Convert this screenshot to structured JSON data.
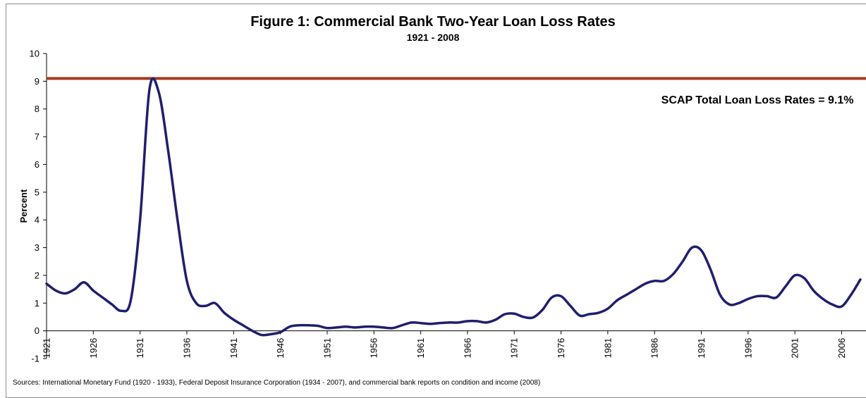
{
  "chart_data": {
    "type": "line",
    "title": "Figure 1: Commercial Bank Two-Year Loan Loss Rates",
    "subtitle": "1921 - 2008",
    "ylabel": "Percent",
    "xlabel": "",
    "ylim": [
      -1,
      10
    ],
    "xlim": [
      1921,
      2008
    ],
    "yticks": [
      "-1",
      "0",
      "1",
      "2",
      "3",
      "4",
      "5",
      "6",
      "7",
      "8",
      "9",
      "10"
    ],
    "xticks": [
      "1921",
      "1926",
      "1931",
      "1936",
      "1941",
      "1946",
      "1951",
      "1956",
      "1961",
      "1966",
      "1971",
      "1976",
      "1981",
      "1986",
      "1991",
      "1996",
      "2001",
      "2006"
    ],
    "grid": false,
    "series": [
      {
        "color": "#1f1f6e",
        "x": [
          1921,
          1922,
          1923,
          1924,
          1925,
          1926,
          1927,
          1928,
          1929,
          1930,
          1931,
          1932,
          1933,
          1934,
          1935,
          1936,
          1937,
          1938,
          1939,
          1940,
          1941,
          1942,
          1943,
          1944,
          1945,
          1946,
          1947,
          1948,
          1949,
          1950,
          1951,
          1952,
          1953,
          1954,
          1955,
          1956,
          1957,
          1958,
          1959,
          1960,
          1961,
          1962,
          1963,
          1964,
          1965,
          1966,
          1967,
          1968,
          1969,
          1970,
          1971,
          1972,
          1973,
          1974,
          1975,
          1976,
          1977,
          1978,
          1979,
          1980,
          1981,
          1982,
          1983,
          1984,
          1985,
          1986,
          1987,
          1988,
          1989,
          1990,
          1991,
          1992,
          1993,
          1994,
          1995,
          1996,
          1997,
          1998,
          1999,
          2000,
          2001,
          2002,
          2003,
          2004,
          2005,
          2006,
          2007,
          2008
        ],
        "values": [
          1.7,
          1.45,
          1.35,
          1.5,
          1.75,
          1.45,
          1.2,
          0.95,
          0.72,
          1.1,
          4.0,
          8.7,
          8.6,
          6.5,
          4.0,
          1.8,
          1.0,
          0.9,
          1.0,
          0.65,
          0.4,
          0.2,
          0.0,
          -0.15,
          -0.12,
          -0.05,
          0.15,
          0.2,
          0.2,
          0.18,
          0.1,
          0.12,
          0.15,
          0.12,
          0.15,
          0.15,
          0.12,
          0.1,
          0.2,
          0.3,
          0.28,
          0.25,
          0.28,
          0.3,
          0.3,
          0.35,
          0.35,
          0.3,
          0.4,
          0.6,
          0.62,
          0.5,
          0.48,
          0.75,
          1.2,
          1.25,
          0.9,
          0.55,
          0.6,
          0.65,
          0.8,
          1.1,
          1.3,
          1.5,
          1.7,
          1.8,
          1.8,
          2.05,
          2.5,
          3.0,
          2.9,
          2.2,
          1.3,
          0.95,
          1.0,
          1.15,
          1.25,
          1.25,
          1.2,
          1.6,
          2.0,
          1.9,
          1.45,
          1.15,
          0.95,
          0.88,
          1.3,
          1.85
        ]
      }
    ],
    "reference_line": {
      "y": 9.1,
      "color": "#a33a1e"
    },
    "annotation": {
      "text": "SCAP Total Loan Loss Rates = 9.1%",
      "x": 1997,
      "y": 8.2
    }
  },
  "source_note": "Sources:  International Monetary Fund (1920 - 1933), Federal Deposit Insurance Corporation (1934 - 2007), and commercial bank reports on condition and income (2008)"
}
